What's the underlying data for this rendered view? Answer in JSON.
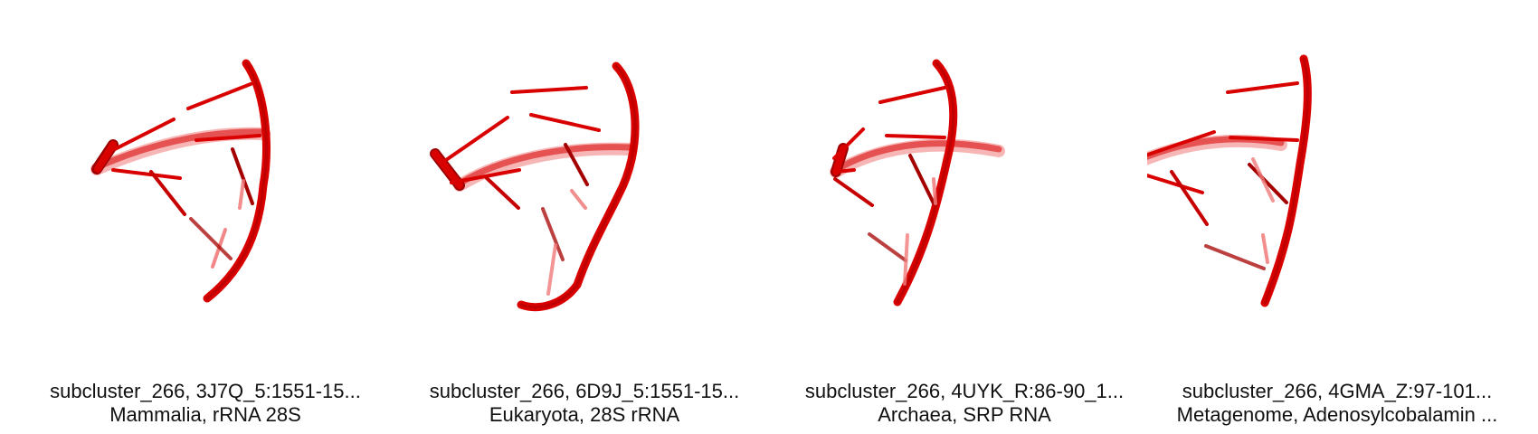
{
  "panels": [
    {
      "title": "subcluster_266, 3J7Q_5:1551-15...",
      "subtitle": "Mammalia, rRNA 28S",
      "image": "rna-structure-render"
    },
    {
      "title": "subcluster_266, 6D9J_5:1551-15...",
      "subtitle": "Eukaryota, 28S rRNA",
      "image": "rna-structure-render"
    },
    {
      "title": "subcluster_266, 4UYK_R:86-90_1...",
      "subtitle": "Archaea, SRP RNA",
      "image": "rna-structure-render"
    },
    {
      "title": "subcluster_266, 4GMA_Z:97-101...",
      "subtitle": "Metagenome, Adenosylcobalamin ...",
      "image": "rna-structure-render"
    }
  ],
  "colors": {
    "rna_main": "#d90000",
    "rna_dark": "#8f0000",
    "rna_light": "#f07a7a"
  }
}
